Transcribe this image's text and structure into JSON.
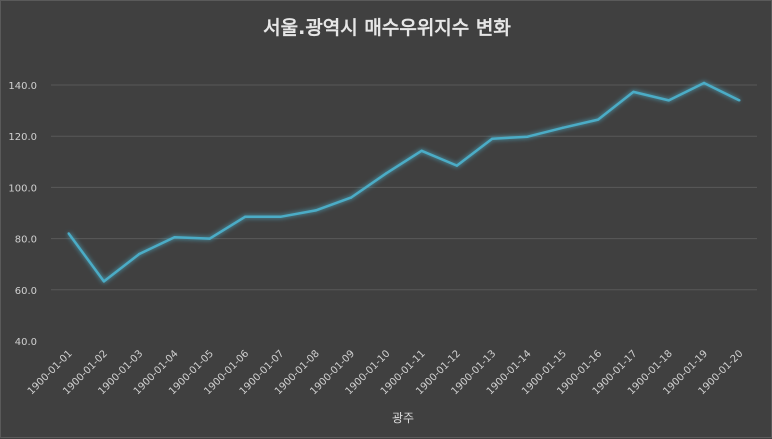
{
  "chart_data": {
    "type": "line",
    "title": "서울.광역시 매수우위지수 변화",
    "xlabel": "",
    "ylabel": "",
    "categories": [
      "1900-01-01",
      "1900-01-02",
      "1900-01-03",
      "1900-01-04",
      "1900-01-05",
      "1900-01-06",
      "1900-01-07",
      "1900-01-08",
      "1900-01-09",
      "1900-01-10",
      "1900-01-11",
      "1900-01-12",
      "1900-01-13",
      "1900-01-14",
      "1900-01-15",
      "1900-01-16",
      "1900-01-17",
      "1900-01-18",
      "1900-01-19",
      "1900-01-20"
    ],
    "series": [
      {
        "name": "광주",
        "color": "#4bacc6",
        "values": [
          82.0,
          63.3,
          74.0,
          80.5,
          80.0,
          88.5,
          88.5,
          91.0,
          96.0,
          105.5,
          114.3,
          108.5,
          119.0,
          119.8,
          123.3,
          126.5,
          137.3,
          134.0,
          140.8,
          134.0
        ]
      }
    ],
    "ylim": [
      40,
      140
    ],
    "yticks": [
      "40.0",
      "60.0",
      "80.0",
      "100.0",
      "120.0",
      "140.0"
    ],
    "ytick_values": [
      40,
      60,
      80,
      100,
      120,
      140
    ],
    "grid": true,
    "legend_position": "bottom"
  }
}
